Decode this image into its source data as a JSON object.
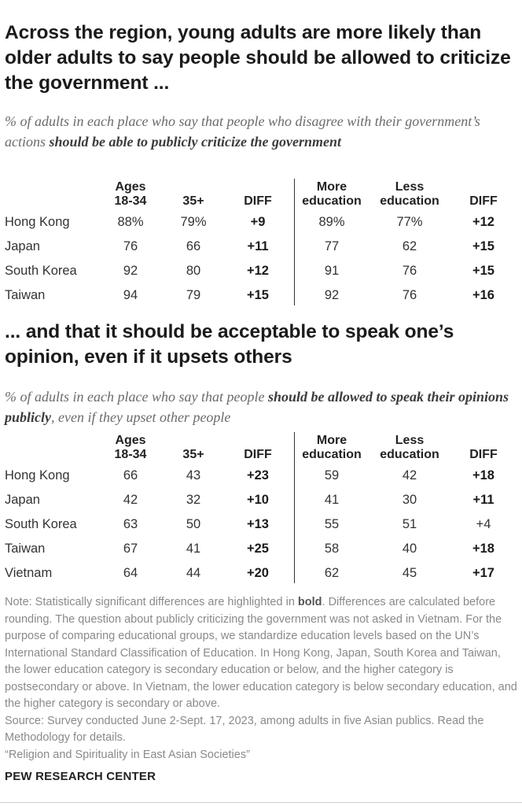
{
  "title_main": "Across the region, young adults are more likely than older adults to say people should be allowed to criticize the government ...",
  "subtitle_main": {
    "plain": "% of adults in each place who say that people who disagree with their government’s actions",
    "bold": "should be able to publicly criticize the government",
    "after": ""
  },
  "title_second": "... and that it should be acceptable to speak one’s opinion, even if it upsets others",
  "subtitle_second": {
    "plain": "% of adults in each place who say that people",
    "bold": "should be allowed to speak their opinions publicly",
    "after": ", even if they upset other people"
  },
  "column_headers": {
    "ages_young": "Ages\n18-34",
    "ages_old": "35+",
    "diff": "DIFF",
    "edu_more": "More\neducation",
    "edu_less": "Less\neducation",
    "diff2": "DIFF"
  },
  "chart_data": [
    {
      "type": "table",
      "columns": [
        "Ages 18-34",
        "35+",
        "DIFF",
        "More education",
        "Less education",
        "DIFF"
      ],
      "rows": [
        {
          "label": "Hong Kong",
          "values": [
            "88%",
            "79%",
            "+9",
            "89%",
            "77%",
            "+12"
          ],
          "bold": [
            false,
            false,
            true,
            false,
            false,
            true
          ]
        },
        {
          "label": "Japan",
          "values": [
            "76",
            "66",
            "+11",
            "77",
            "62",
            "+15"
          ],
          "bold": [
            false,
            false,
            true,
            false,
            false,
            true
          ]
        },
        {
          "label": "South Korea",
          "values": [
            "92",
            "80",
            "+12",
            "91",
            "76",
            "+15"
          ],
          "bold": [
            false,
            false,
            true,
            false,
            false,
            true
          ]
        },
        {
          "label": "Taiwan",
          "values": [
            "94",
            "79",
            "+15",
            "92",
            "76",
            "+16"
          ],
          "bold": [
            false,
            false,
            true,
            false,
            false,
            true
          ]
        }
      ]
    },
    {
      "type": "table",
      "columns": [
        "Ages 18-34",
        "35+",
        "DIFF",
        "More education",
        "Less education",
        "DIFF"
      ],
      "rows": [
        {
          "label": "Hong Kong",
          "values": [
            "66",
            "43",
            "+23",
            "59",
            "42",
            "+18"
          ],
          "bold": [
            false,
            false,
            true,
            false,
            false,
            true
          ]
        },
        {
          "label": "Japan",
          "values": [
            "42",
            "32",
            "+10",
            "41",
            "30",
            "+11"
          ],
          "bold": [
            false,
            false,
            true,
            false,
            false,
            true
          ]
        },
        {
          "label": "South Korea",
          "values": [
            "63",
            "50",
            "+13",
            "55",
            "51",
            "+4"
          ],
          "bold": [
            false,
            false,
            true,
            false,
            false,
            false
          ]
        },
        {
          "label": "Taiwan",
          "values": [
            "67",
            "41",
            "+25",
            "58",
            "40",
            "+18"
          ],
          "bold": [
            false,
            false,
            true,
            false,
            false,
            true
          ]
        },
        {
          "label": "Vietnam",
          "values": [
            "64",
            "44",
            "+20",
            "62",
            "45",
            "+17"
          ],
          "bold": [
            false,
            false,
            true,
            false,
            false,
            true
          ]
        }
      ]
    }
  ],
  "note": {
    "lead": "Note: Statistically significant differences are highlighted in ",
    "bold_word": "bold",
    "rest": ". Differences are calculated before rounding. The question about publicly criticizing the government was not asked in Vietnam. For the purpose of comparing educational groups, we standardize education levels based on the UN’s International Standard Classification of Education. In Hong Kong, Japan, South Korea and Taiwan, the lower education category is secondary education or below, and the higher category is postsecondary or above. In Vietnam, the lower education category is below secondary education, and the higher category is secondary or above.",
    "source": "Source: Survey conducted June 2-Sept. 17, 2023, among adults in five Asian publics. Read the Methodology for details.",
    "report": "“Religion and Spirituality in East Asian Societies”"
  },
  "brand": "PEW RESEARCH CENTER"
}
